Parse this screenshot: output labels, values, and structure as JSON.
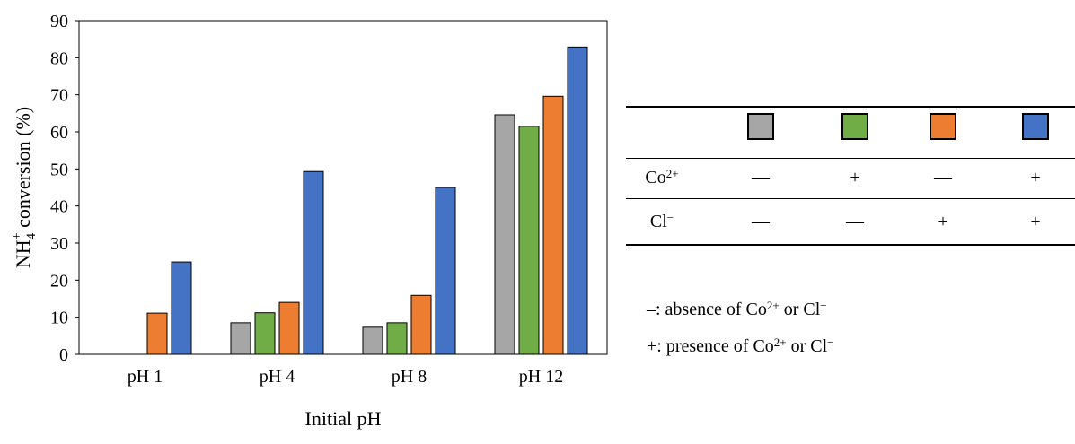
{
  "chart_data": {
    "type": "bar",
    "categories": [
      "pH 1",
      "pH 4",
      "pH 8",
      "pH 12"
    ],
    "series": [
      {
        "color": "#a6a6a6",
        "values": [
          0,
          8.5,
          7.3,
          64.6
        ]
      },
      {
        "color": "#70ad47",
        "values": [
          0,
          11.2,
          8.5,
          61.5
        ]
      },
      {
        "color": "#ed7d31",
        "values": [
          11.1,
          14.0,
          15.9,
          69.6
        ]
      },
      {
        "color": "#4472c4",
        "values": [
          24.9,
          49.3,
          45.0,
          82.9
        ]
      }
    ],
    "xlabel": "Initial pH",
    "ylabel_main": "NH",
    "ylabel_sub": "4",
    "ylabel_sup": "+",
    "ylabel_rest": " conversion (%)",
    "ylim": [
      0,
      90
    ],
    "yticks": [
      "0",
      "10",
      "20",
      "30",
      "40",
      "50",
      "60",
      "70",
      "80",
      "90"
    ],
    "grid": false
  },
  "legend_table": {
    "rows": [
      {
        "label_base": "Co",
        "label_sup": "2+",
        "marks": [
          "—",
          "+",
          "—",
          "+"
        ]
      },
      {
        "label_base": "Cl",
        "label_sup": "−",
        "marks": [
          "—",
          "—",
          "+",
          "+"
        ]
      }
    ]
  },
  "notes": {
    "absence": {
      "sym": "–",
      "text1": ": absence of Co",
      "sup1": "2+",
      "text2": " or Cl",
      "sup2": "−"
    },
    "presence": {
      "sym": "+",
      "text1": ": presence of Co",
      "sup1": "2+",
      "text2": " or Cl",
      "sup2": "−"
    }
  }
}
